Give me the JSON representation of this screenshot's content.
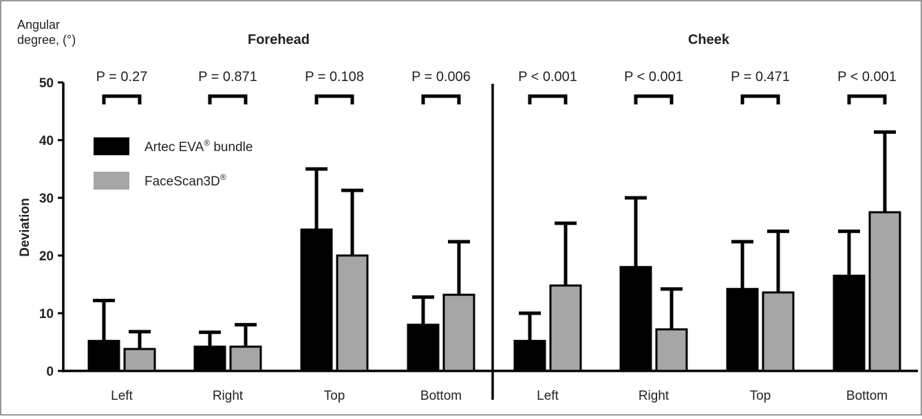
{
  "chart_data": {
    "type": "bar",
    "ylabel_top": "Angular degree, (°)",
    "ylabel": "Deviation",
    "ylim": [
      0,
      50
    ],
    "yticks": [
      "0",
      "10",
      "20",
      "30",
      "40",
      "50"
    ],
    "grid": false,
    "legend_position": "top-left",
    "groups": [
      {
        "title": "Forehead",
        "categories": [
          "Left",
          "Right",
          "Top",
          "Bottom"
        ],
        "p_values": [
          "P = 0.27",
          "P = 0.871",
          "P = 0.108",
          "P = 0.006"
        ],
        "series": [
          {
            "values": [
              5.2,
              4.2,
              24.5,
              8.0
            ],
            "errors": [
              7.0,
              2.5,
              10.5,
              4.8
            ]
          },
          {
            "values": [
              3.8,
              4.2,
              20.0,
              13.2
            ],
            "errors": [
              3.0,
              3.8,
              11.3,
              9.2
            ]
          }
        ]
      },
      {
        "title": "Cheek",
        "categories": [
          "Left",
          "Right",
          "Top",
          "Bottom"
        ],
        "p_values": [
          "P < 0.001",
          "P < 0.001",
          "P = 0.471",
          "P < 0.001"
        ],
        "series": [
          {
            "values": [
              5.2,
              18.0,
              14.2,
              16.5
            ],
            "errors": [
              4.8,
              12.0,
              8.2,
              7.7
            ]
          },
          {
            "values": [
              14.8,
              7.2,
              13.6,
              27.5
            ],
            "errors": [
              10.8,
              7.0,
              10.6,
              13.9
            ]
          }
        ]
      }
    ],
    "legend": [
      {
        "label": "Artec EVA",
        "sup": "®",
        "suffix": " bundle",
        "color": "#000000"
      },
      {
        "label": "FaceScan3D",
        "sup": "®",
        "suffix": "",
        "color": "#a6a6a6"
      }
    ],
    "colors": [
      "#000000",
      "#a6a6a6"
    ]
  }
}
